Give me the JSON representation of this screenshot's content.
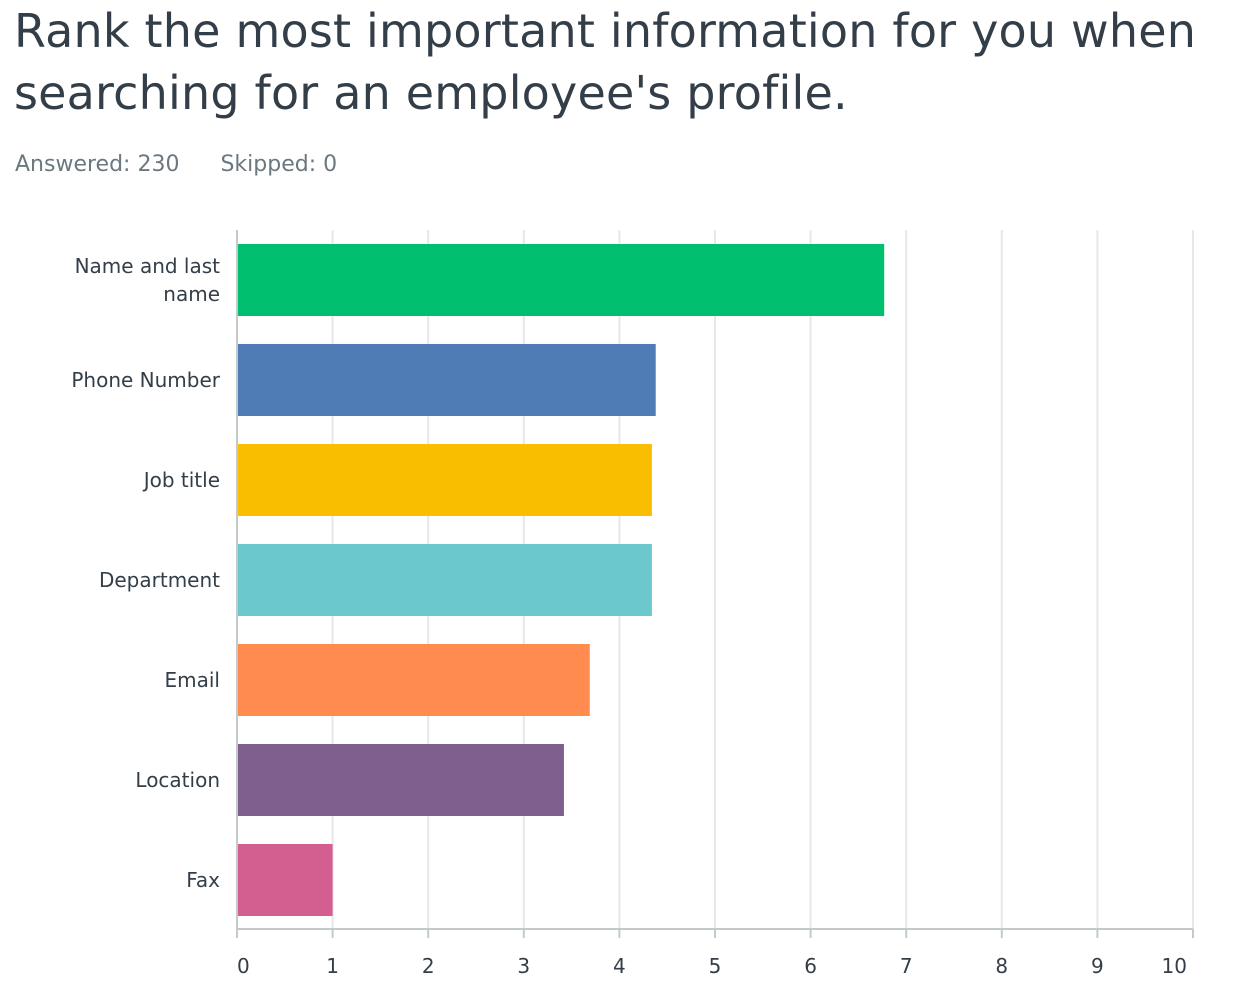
{
  "question": {
    "title": "Rank the most important information for you when searching for an employee's profile."
  },
  "stats": {
    "answered": "Answered: 230",
    "skipped": "Skipped: 0"
  },
  "chart_data": {
    "type": "bar",
    "orientation": "horizontal",
    "title": "Rank the most important information for you when searching for an employee's profile.",
    "xlabel": "",
    "ylabel": "",
    "xlim": [
      0,
      10
    ],
    "ticks": [
      0,
      1,
      2,
      3,
      4,
      5,
      6,
      7,
      8,
      9,
      10
    ],
    "grid": true,
    "categories": [
      [
        "Name and last",
        "name"
      ],
      [
        "Phone Number"
      ],
      [
        "Job title"
      ],
      [
        "Department"
      ],
      [
        "Email"
      ],
      [
        "Location"
      ],
      [
        "Fax"
      ]
    ],
    "values": [
      6.77,
      4.38,
      4.34,
      4.34,
      3.69,
      3.42,
      1.0
    ],
    "colors": [
      "#00bf6f",
      "#507cb6",
      "#f9be00",
      "#6bc8cd",
      "#ff8b4f",
      "#7f5f8e",
      "#d25f90"
    ]
  }
}
